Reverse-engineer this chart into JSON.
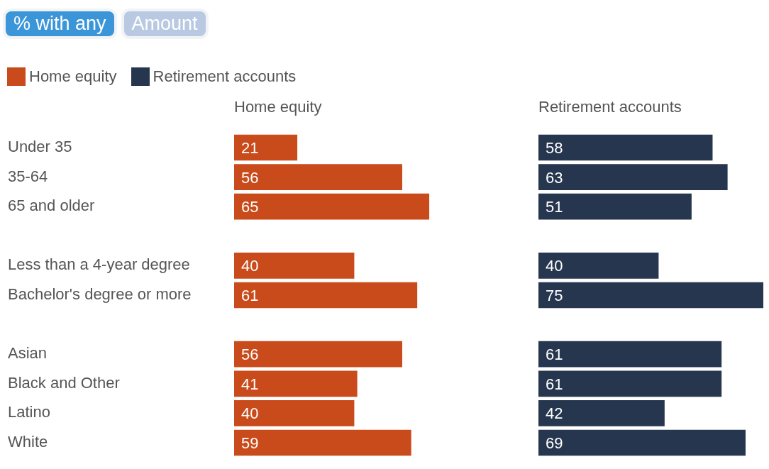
{
  "chart_data": [
    {
      "type": "bar",
      "orientation": "horizontal",
      "title": "Home equity",
      "annotations": [
        "% with any",
        "Amount"
      ],
      "legend": "top left",
      "tick_labels": "y",
      "data_labels": true,
      "grid": false,
      "categories": [
        "Under 35",
        "35-64",
        "65 and older",
        null,
        "Less than a 4-year degree",
        "Bachelor's degree or more",
        null,
        "Asian",
        "Black and Other",
        "Latino",
        "White"
      ],
      "series": [
        {
          "name": "Home equity",
          "color": "#c94b1b",
          "values": [
            21,
            56,
            65,
            null,
            40,
            61,
            null,
            56,
            41,
            40,
            59
          ]
        }
      ]
    },
    {
      "type": "bar",
      "orientation": "horizontal",
      "title": "Retirement accounts",
      "tick_labels": false,
      "data_labels": true,
      "grid": false,
      "categories": [
        null,
        null,
        null,
        null,
        null,
        null,
        null,
        null,
        null,
        null,
        null
      ],
      "series": [
        {
          "name": "Retirement accounts",
          "color": "#26364f",
          "values": [
            58,
            63,
            51,
            null,
            40,
            75,
            null,
            61,
            61,
            42,
            69
          ]
        }
      ]
    }
  ]
}
